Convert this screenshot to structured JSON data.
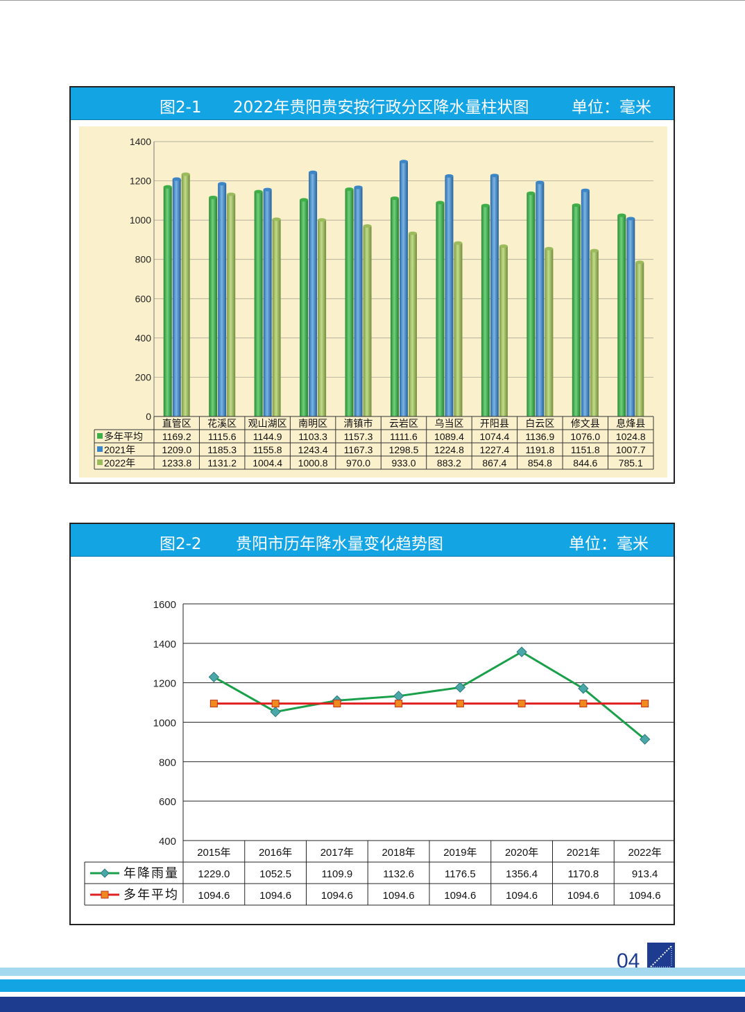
{
  "page": {
    "page_number": "04"
  },
  "figure1": {
    "label": "图2-1",
    "title": "2022年贵阳贵安按行政分区降水量柱状图",
    "unit": "单位：毫米"
  },
  "figure2": {
    "label": "图2-2",
    "title": "贵阳市历年降水量变化趋势图",
    "unit": "单位：毫米"
  },
  "colors": {
    "header_bg": "#13a4e4",
    "bar_avg": "#3fae49",
    "bar_2021": "#3d86c6",
    "bar_2022": "#9cbb5c",
    "line_annual": "#1aa04a",
    "marker_annual": "#4aa8a8",
    "line_avg": "#e02020",
    "marker_avg": "#f08a1c",
    "plot_bg1": "#fbf0cc",
    "footer_navy": "#1d3b8f"
  },
  "chart_data": [
    {
      "type": "bar",
      "categories": [
        "直管区",
        "花溪区",
        "观山湖区",
        "南明区",
        "清镇市",
        "云岩区",
        "乌当区",
        "开阳县",
        "白云区",
        "修文县",
        "息烽县"
      ],
      "series": [
        {
          "name": "多年平均",
          "values": [
            1169.2,
            1115.6,
            1144.9,
            1103.3,
            1157.3,
            1111.6,
            1089.4,
            1074.4,
            1136.9,
            1076.0,
            1024.8
          ],
          "labels": [
            "1169.2",
            "1115.6",
            "1144.9",
            "1103.3",
            "1157.3",
            "1111.6",
            "1089.4",
            "1074.4",
            "1136.9",
            "1076.0",
            "1024.8"
          ]
        },
        {
          "name": "2021年",
          "values": [
            1209.0,
            1185.3,
            1155.8,
            1243.4,
            1167.3,
            1298.5,
            1224.8,
            1227.4,
            1191.8,
            1151.8,
            1007.7
          ],
          "labels": [
            "1209.0",
            "1185.3",
            "1155.8",
            "1243.4",
            "1167.3",
            "1298.5",
            "1224.8",
            "1227.4",
            "1191.8",
            "1151.8",
            "1007.7"
          ]
        },
        {
          "name": "2022年",
          "values": [
            1233.8,
            1131.2,
            1004.4,
            1000.8,
            970.0,
            933.0,
            883.2,
            867.4,
            854.8,
            844.6,
            785.1
          ],
          "labels": [
            "1233.8",
            "1131.2",
            "1004.4",
            "1000.8",
            "970.0",
            "933.0",
            "883.2",
            "867.4",
            "854.8",
            "844.6",
            "785.1"
          ]
        }
      ],
      "ylim": [
        0,
        1400
      ],
      "yticks": [
        0,
        200,
        400,
        600,
        800,
        1000,
        1200,
        1400
      ],
      "grid": true,
      "legend": "data-table"
    },
    {
      "type": "line",
      "categories": [
        "2015年",
        "2016年",
        "2017年",
        "2018年",
        "2019年",
        "2020年",
        "2021年",
        "2022年"
      ],
      "series": [
        {
          "name": "年降雨量",
          "values": [
            1229.0,
            1052.5,
            1109.9,
            1132.6,
            1176.5,
            1356.4,
            1170.8,
            913.4
          ],
          "labels": [
            "1229.0",
            "1052.5",
            "1109.9",
            "1132.6",
            "1176.5",
            "1356.4",
            "1170.8",
            "913.4"
          ]
        },
        {
          "name": "多年平均",
          "values": [
            1094.6,
            1094.6,
            1094.6,
            1094.6,
            1094.6,
            1094.6,
            1094.6,
            1094.6
          ],
          "labels": [
            "1094.6",
            "1094.6",
            "1094.6",
            "1094.6",
            "1094.6",
            "1094.6",
            "1094.6",
            "1094.6"
          ]
        }
      ],
      "ylim": [
        400,
        1600
      ],
      "yticks": [
        400,
        600,
        800,
        1000,
        1200,
        1400,
        1600
      ],
      "grid": true,
      "legend": "data-table"
    }
  ]
}
